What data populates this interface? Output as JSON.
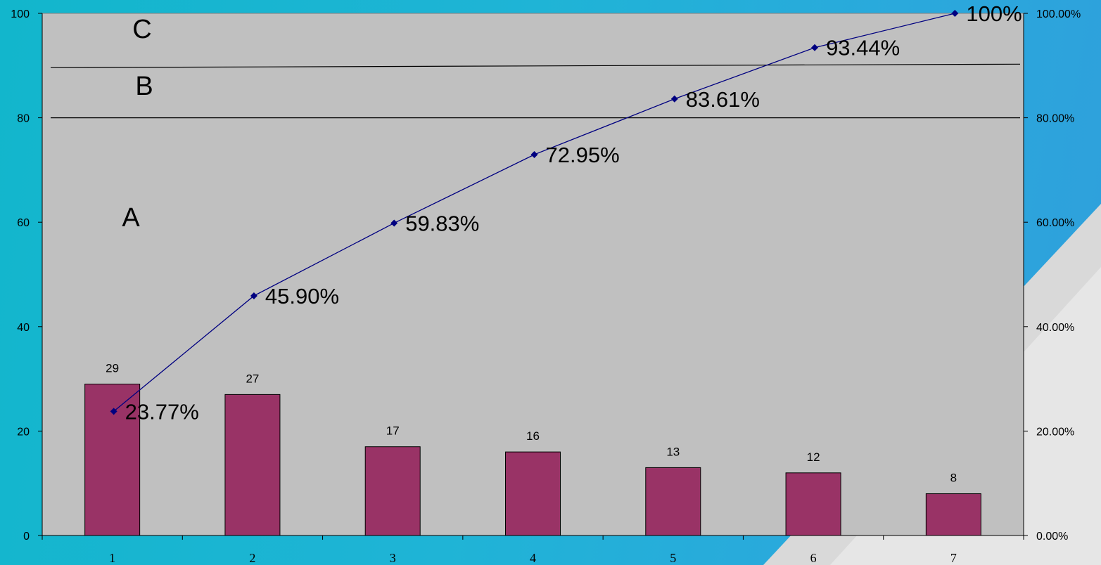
{
  "chart_data": {
    "type": "bar+line",
    "categories": [
      "1",
      "2",
      "3",
      "4",
      "5",
      "6",
      "7"
    ],
    "values": [
      29,
      27,
      17,
      16,
      13,
      12,
      8
    ],
    "cumulative_percent": [
      23.77,
      45.9,
      59.83,
      72.95,
      83.61,
      93.44,
      100
    ],
    "cumulative_labels": [
      "23.77%",
      "45.90%",
      "59.83%",
      "72.95%",
      "83.61%",
      "93.44%",
      "100%"
    ],
    "bar_labels": [
      "29",
      "27",
      "17",
      "16",
      "13",
      "12",
      "8"
    ],
    "left_axis": {
      "ylim": [
        0,
        100
      ],
      "ticks": [
        "0",
        "20",
        "40",
        "60",
        "80",
        "100"
      ]
    },
    "right_axis": {
      "ylim": [
        0,
        100
      ],
      "ticks": [
        "0.00%",
        "20.00%",
        "40.00%",
        "60.00%",
        "80.00%",
        "100.00%"
      ]
    },
    "zones": [
      {
        "label": "A",
        "upper_percent": 80
      },
      {
        "label": "B",
        "upper_percent": 90
      },
      {
        "label": "C",
        "upper_percent": 100
      }
    ],
    "colors": {
      "bar": "#993366",
      "line": "#000080",
      "plot_background": "#c0c0c0",
      "page_background": "#1fb4d6"
    },
    "grid": false,
    "legend": "none"
  }
}
